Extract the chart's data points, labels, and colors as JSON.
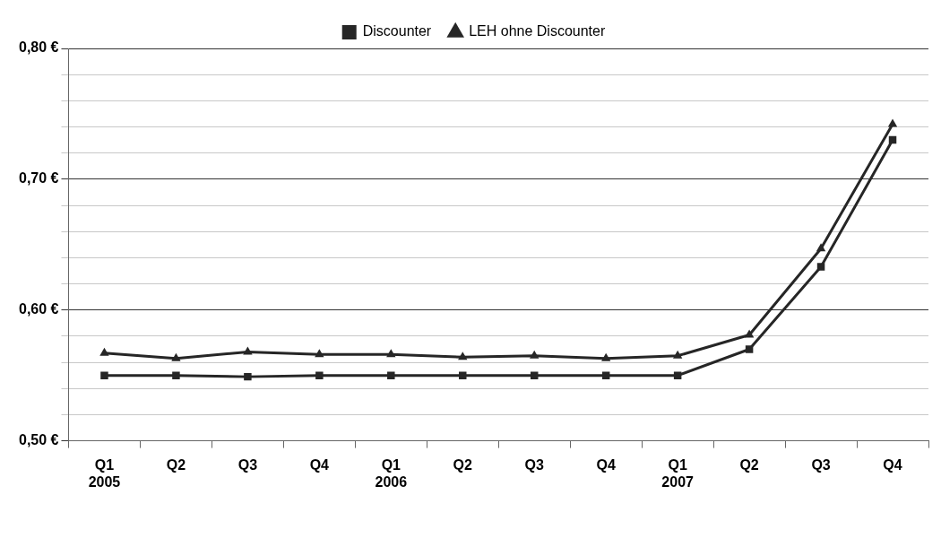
{
  "chart_data": {
    "type": "line",
    "categories": [
      "Q1\n2005",
      "Q2",
      "Q3",
      "Q4",
      "Q1\n2006",
      "Q2",
      "Q3",
      "Q4",
      "Q1\n2007",
      "Q2",
      "Q3",
      "Q4"
    ],
    "series": [
      {
        "name": "Discounter",
        "color": "#262626",
        "marker": "square",
        "values": [
          0.55,
          0.55,
          0.549,
          0.55,
          0.55,
          0.55,
          0.55,
          0.55,
          0.55,
          0.57,
          0.633,
          0.73
        ]
      },
      {
        "name": "LEH ohne Discounter",
        "color": "#262626",
        "marker": "triangle",
        "values": [
          0.567,
          0.563,
          0.568,
          0.566,
          0.566,
          0.564,
          0.565,
          0.563,
          0.565,
          0.581,
          0.647,
          0.742
        ]
      }
    ],
    "ylim": [
      0.5,
      0.8
    ],
    "yticks": [
      {
        "value": 0.5,
        "label": "0,50 €"
      },
      {
        "value": 0.52,
        "label": null
      },
      {
        "value": 0.54,
        "label": null
      },
      {
        "value": 0.56,
        "label": null
      },
      {
        "value": 0.58,
        "label": null
      },
      {
        "value": 0.6,
        "label": "0,60 €"
      },
      {
        "value": 0.62,
        "label": null
      },
      {
        "value": 0.64,
        "label": null
      },
      {
        "value": 0.66,
        "label": null
      },
      {
        "value": 0.68,
        "label": null
      },
      {
        "value": 0.7,
        "label": "0,70 €"
      },
      {
        "value": 0.72,
        "label": null
      },
      {
        "value": 0.74,
        "label": null
      },
      {
        "value": 0.76,
        "label": null
      },
      {
        "value": 0.78,
        "label": null
      },
      {
        "value": 0.8,
        "label": "0,80 €"
      }
    ],
    "grid": "y",
    "legend": "top",
    "line_style": "solid"
  }
}
